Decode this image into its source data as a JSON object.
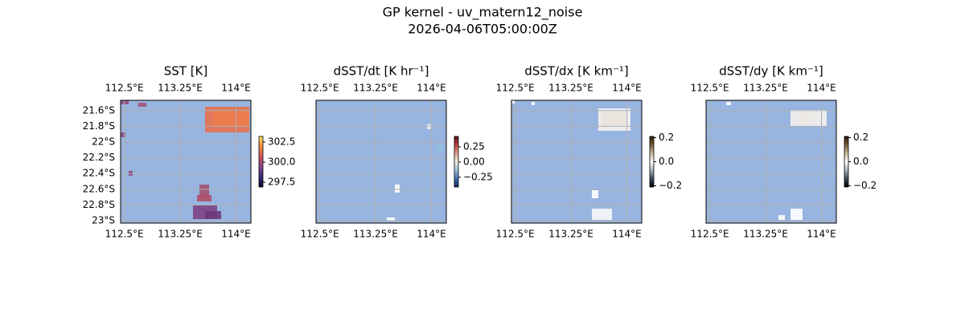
{
  "title": "GP kernel - uv_matern12_noise",
  "subtitle": "2026-04-06T05:00:00Z",
  "xlim": [
    112.45,
    114.2
  ],
  "ylim": [
    -23.03,
    -21.47
  ],
  "lon_ticks": [
    {
      "value": 112.5,
      "label": "112.5°E"
    },
    {
      "value": 113.25,
      "label": "113.25°E"
    },
    {
      "value": 114,
      "label": "114°E"
    }
  ],
  "lat_ticks": [
    {
      "value": -21.6,
      "label": "21.6°S"
    },
    {
      "value": -21.8,
      "label": "21.8°S"
    },
    {
      "value": -22,
      "label": "22°S"
    },
    {
      "value": -22.2,
      "label": "22.2°S"
    },
    {
      "value": -22.4,
      "label": "22.4°S"
    },
    {
      "value": -22.6,
      "label": "22.6°S"
    },
    {
      "value": -22.8,
      "label": "22.8°S"
    },
    {
      "value": -23,
      "label": "23°S"
    }
  ],
  "ocean_color": "#98b4e0",
  "land_color": "#efefdb",
  "grid": true,
  "panels": [
    {
      "title": "SST [K]",
      "lat_labels": true,
      "colorbar": {
        "clim": [
          296.9,
          303.2
        ],
        "ticks": [
          {
            "value": 302.5,
            "label": "302.5"
          },
          {
            "value": 300,
            "label": "300.0"
          },
          {
            "value": 297.5,
            "label": "297.5"
          }
        ],
        "cmap": [
          "#04082e",
          "#3b2d7c",
          "#8b3f8e",
          "#d4525e",
          "#f58b3f",
          "#f3e66a"
        ]
      }
    },
    {
      "title": "dSST/dt [K hr⁻¹]",
      "lat_labels": false,
      "colorbar": {
        "clim": [
          -0.41,
          0.42
        ],
        "ticks": [
          {
            "value": 0.25,
            "label": "0.25"
          },
          {
            "value": 0,
            "label": "0.00"
          },
          {
            "value": -0.25,
            "label": "−0.25"
          }
        ],
        "cmap": [
          "#182a5c",
          "#3f6fb5",
          "#9cc4dc",
          "#f1eeec",
          "#e0a08c",
          "#b9403e",
          "#5a0f1e"
        ]
      }
    },
    {
      "title": "dSST/dx [K km⁻¹]",
      "lat_labels": false,
      "colorbar": {
        "clim": [
          -0.21,
          0.21
        ],
        "ticks": [
          {
            "value": 0.2,
            "label": "0.2"
          },
          {
            "value": 0,
            "label": "0.0"
          },
          {
            "value": -0.2,
            "label": "−0.2"
          }
        ],
        "cmap": [
          "#000000",
          "#3c4a5e",
          "#a9b3bd",
          "#ffffff",
          "#c9b79d",
          "#7a5c35",
          "#2a1b0c"
        ]
      }
    },
    {
      "title": "dSST/dy [K km⁻¹]",
      "lat_labels": false,
      "colorbar": {
        "clim": [
          -0.21,
          0.21
        ],
        "ticks": [
          {
            "value": 0.2,
            "label": "0.2"
          },
          {
            "value": 0,
            "label": "0.0"
          },
          {
            "value": -0.2,
            "label": "−0.2"
          }
        ],
        "cmap": [
          "#000000",
          "#3c4a5e",
          "#a9b3bd",
          "#ffffff",
          "#c9b79d",
          "#7a5c35",
          "#2a1b0c"
        ]
      }
    }
  ]
}
